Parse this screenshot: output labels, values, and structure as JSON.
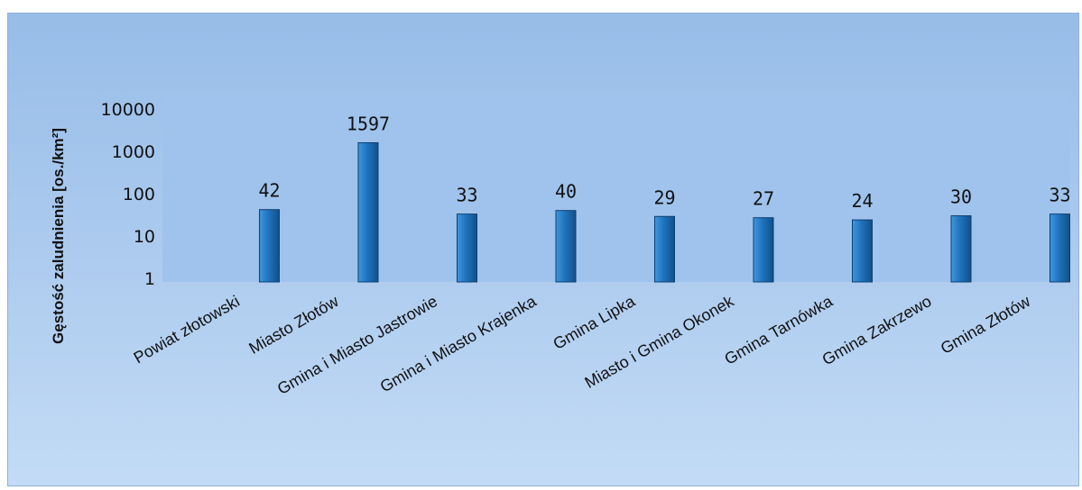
{
  "chart_data": {
    "type": "bar",
    "title": "",
    "xlabel": "",
    "ylabel": "Gęstość zaludnienia [os./km²]",
    "yscale": "log",
    "ylim": [
      1,
      10000
    ],
    "yticks": [
      "1",
      "10",
      "100",
      "1000",
      "10000"
    ],
    "categories": [
      "Powiat złotowski",
      "Miasto Złotów",
      "Gmina i Miasto Jastrowie",
      "Gmina i Miasto Krajenka",
      "Gmina Lipka",
      "Miasto i Gmina Okonek",
      "Gmina Tarnówka",
      "Gmina Zakrzewo",
      "Gmina Złotów"
    ],
    "values": [
      42,
      1597,
      33,
      40,
      29,
      27,
      24,
      30,
      33
    ],
    "data_labels": [
      "42",
      "1597",
      "33",
      "40",
      "29",
      "27",
      "24",
      "30",
      "33"
    ],
    "grid": false,
    "legend": "none",
    "colors": {
      "bar": "#1f73bd",
      "bar_light": "#3f97de",
      "bar_dark": "#12508a",
      "plot_area": "#9fc3ec",
      "background": "#aac9ee"
    }
  }
}
